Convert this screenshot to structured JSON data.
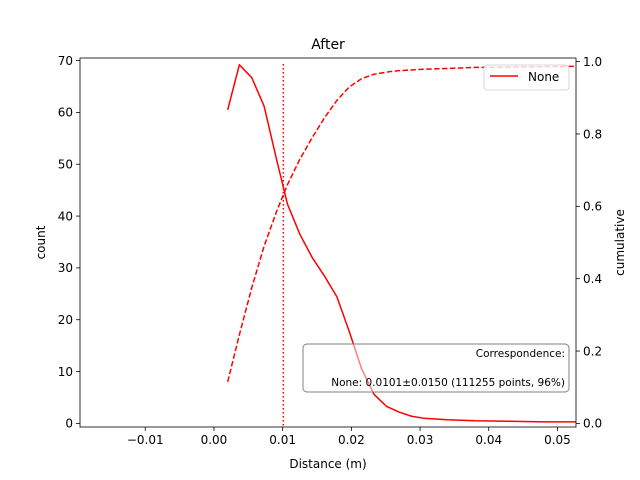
{
  "chart_data": {
    "type": "line",
    "title": "After",
    "xlabel": "Distance (m)",
    "ylabel": "count",
    "y2label": "cumulative",
    "xlim": [
      -0.0195,
      0.0527
    ],
    "ylim": [
      -0.7,
      70.5
    ],
    "y2lim": [
      -0.01,
      1.01
    ],
    "xticks": [
      -0.01,
      0.0,
      0.01,
      0.02,
      0.03,
      0.04,
      0.05
    ],
    "xtick_labels": [
      "−0.01",
      "0.00",
      "0.01",
      "0.02",
      "0.03",
      "0.04",
      "0.05"
    ],
    "yticks": [
      0,
      10,
      20,
      30,
      40,
      50,
      60,
      70
    ],
    "y2ticks": [
      0.0,
      0.2,
      0.4,
      0.6,
      0.8,
      1.0
    ],
    "y2tick_labels": [
      "0.0",
      "0.2",
      "0.4",
      "0.6",
      "0.8",
      "1.0"
    ],
    "color": "#ff0000",
    "legend": {
      "position": "top-right",
      "entries": [
        "None"
      ]
    },
    "series": [
      {
        "name": "None",
        "axis": "left",
        "style": "solid",
        "x": [
          0.002,
          0.0037,
          0.0055,
          0.0073,
          0.0091,
          0.0107,
          0.0125,
          0.0143,
          0.0161,
          0.0179,
          0.0197,
          0.0215,
          0.0233,
          0.0251,
          0.0269,
          0.0287,
          0.0305,
          0.034,
          0.038,
          0.043,
          0.048,
          0.0527
        ],
        "values": [
          60.5,
          69.2,
          66.7,
          61.2,
          51.0,
          42.3,
          36.5,
          32.0,
          28.4,
          24.4,
          17.7,
          10.5,
          5.6,
          3.3,
          2.2,
          1.4,
          1.0,
          0.7,
          0.5,
          0.4,
          0.3,
          0.3
        ]
      },
      {
        "axis": "right",
        "style": "dashed",
        "x": [
          0.002,
          0.0037,
          0.0055,
          0.0073,
          0.0091,
          0.0107,
          0.0125,
          0.0143,
          0.0161,
          0.0179,
          0.0197,
          0.0215,
          0.0233,
          0.0251,
          0.0269,
          0.0287,
          0.0305,
          0.034,
          0.038,
          0.043,
          0.048,
          0.0527
        ],
        "values": [
          0.115,
          0.245,
          0.375,
          0.49,
          0.585,
          0.66,
          0.73,
          0.79,
          0.845,
          0.893,
          0.93,
          0.953,
          0.965,
          0.971,
          0.975,
          0.977,
          0.979,
          0.981,
          0.984,
          0.985,
          0.986,
          0.987
        ]
      }
    ],
    "vline": {
      "x": 0.0101,
      "style": "dotted"
    },
    "annotation": {
      "position": "lower-right",
      "lines": [
        "Correspondence:",
        "None: 0.0101±0.0150 (111255 points, 96%)"
      ]
    }
  }
}
